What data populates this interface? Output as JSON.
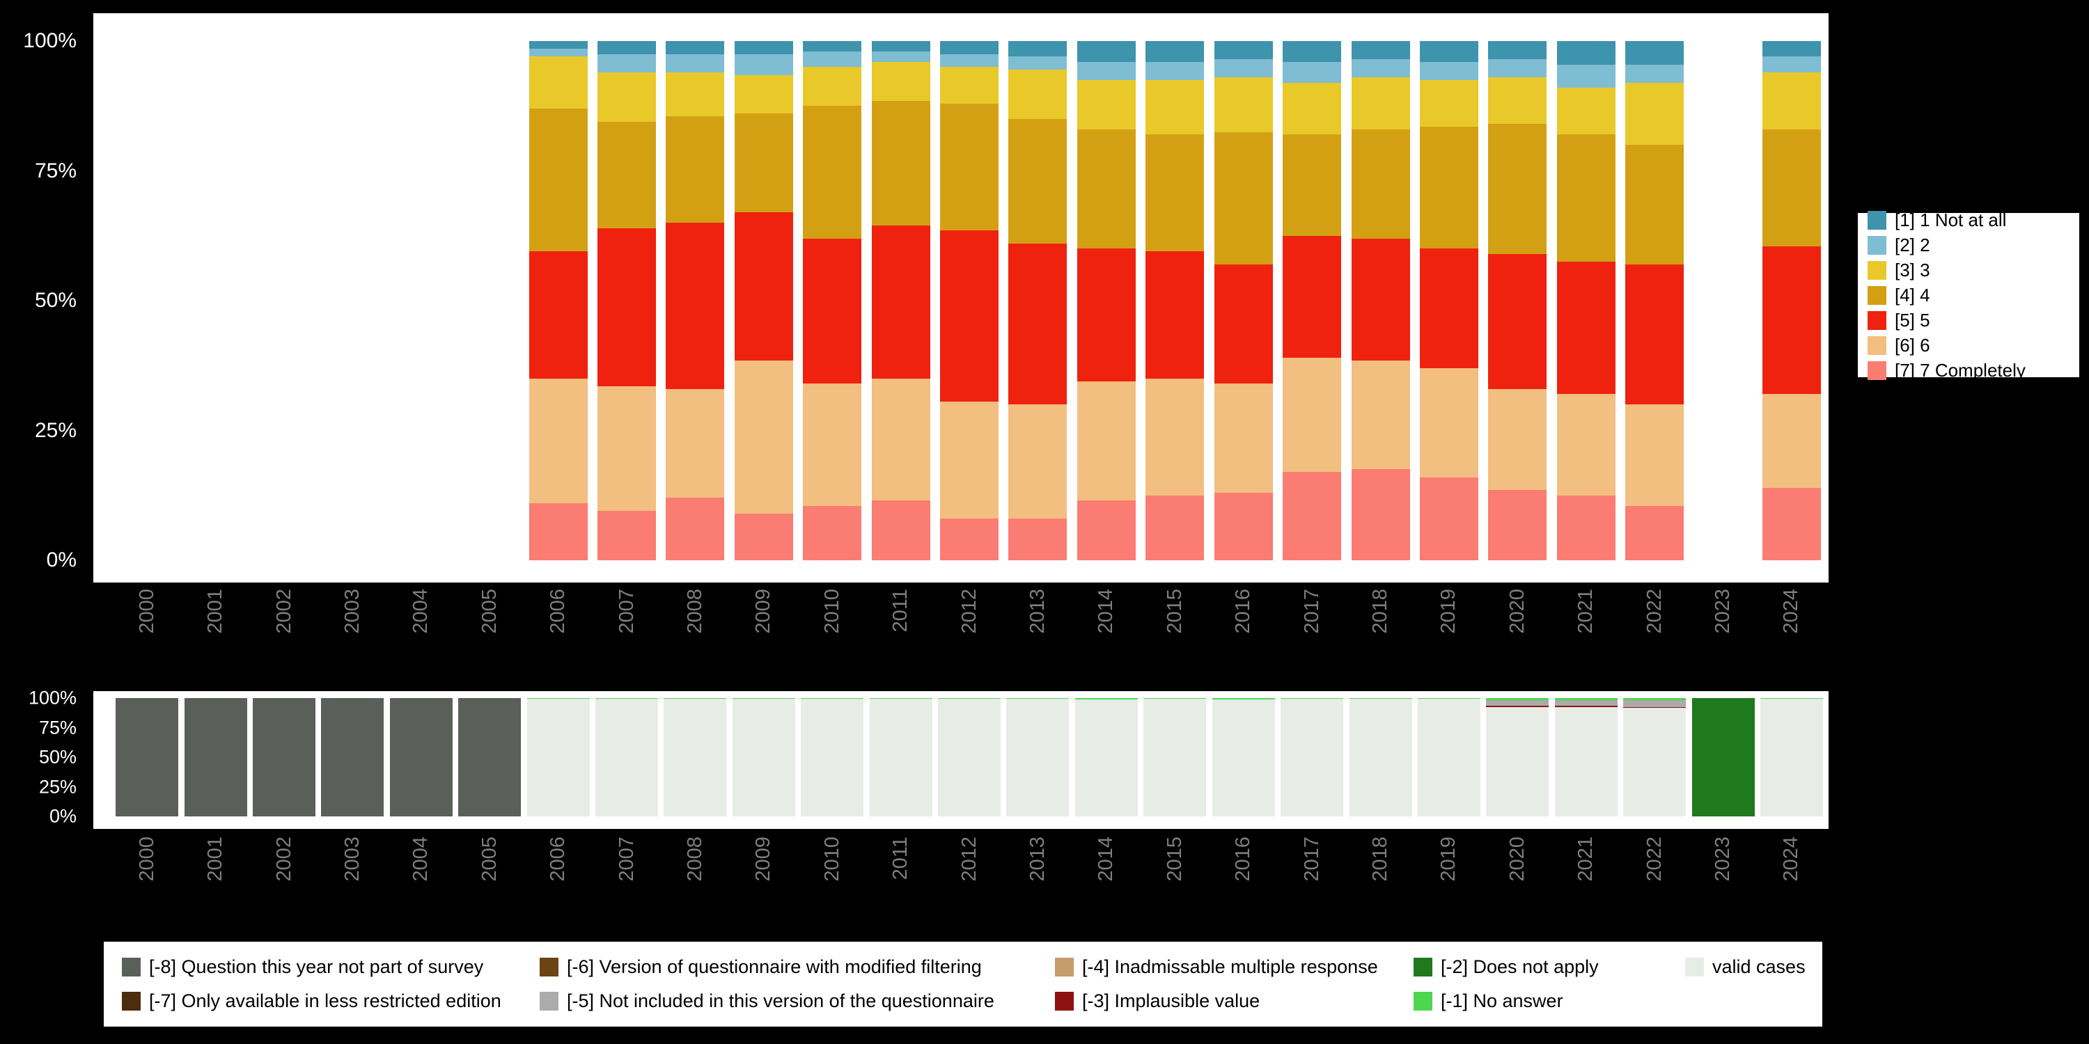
{
  "page": {
    "background_color": "#000000",
    "panel_color": "#ffffff",
    "axis_tick_color": "#ffffff",
    "year_label_color": "#7e7e7e"
  },
  "chart_data": [
    {
      "id": "answer-distribution",
      "type": "bar",
      "stacked": true,
      "orientation": "vertical",
      "unit": "percent",
      "ylim": [
        0,
        100
      ],
      "grid": false,
      "legend_position": "right",
      "y_ticks": [
        "100%",
        "75%",
        "50%",
        "25%",
        "0%"
      ],
      "categories": [
        "2000",
        "2001",
        "2002",
        "2003",
        "2004",
        "2005",
        "2006",
        "2007",
        "2008",
        "2009",
        "2010",
        "2011",
        "2012",
        "2013",
        "2014",
        "2015",
        "2016",
        "2017",
        "2018",
        "2019",
        "2020",
        "2021",
        "2022",
        "2023",
        "2024"
      ],
      "series_keys_bottom_to_top": [
        "7",
        "6",
        "5",
        "4",
        "3",
        "2",
        "1"
      ],
      "legend": [
        {
          "key": "1",
          "label": "[1] 1 Not at all",
          "color": "#3e93ad"
        },
        {
          "key": "2",
          "label": "[2] 2",
          "color": "#7fbdd3"
        },
        {
          "key": "3",
          "label": "[3] 3",
          "color": "#e8c929"
        },
        {
          "key": "4",
          "label": "[4] 4",
          "color": "#d4a013"
        },
        {
          "key": "5",
          "label": "[5] 5",
          "color": "#ee220f"
        },
        {
          "key": "6",
          "label": "[6] 6",
          "color": "#f2bf80"
        },
        {
          "key": "7",
          "label": "[7] 7 Completely",
          "color": "#fb7c72"
        }
      ],
      "bars": [
        {
          "year": "2000",
          "values": null
        },
        {
          "year": "2001",
          "values": null
        },
        {
          "year": "2002",
          "values": null
        },
        {
          "year": "2003",
          "values": null
        },
        {
          "year": "2004",
          "values": null
        },
        {
          "year": "2005",
          "values": null
        },
        {
          "year": "2006",
          "values": [
            11,
            24,
            24.5,
            27.5,
            10,
            1.5,
            1.5
          ]
        },
        {
          "year": "2007",
          "values": [
            9.5,
            24,
            30.5,
            20.5,
            9.5,
            3.5,
            2.5
          ]
        },
        {
          "year": "2008",
          "values": [
            12,
            21,
            32,
            20.5,
            8.5,
            3.5,
            2.5
          ]
        },
        {
          "year": "2009",
          "values": [
            9,
            29.5,
            28.5,
            19,
            7.5,
            4,
            2.5
          ]
        },
        {
          "year": "2010",
          "values": [
            10.5,
            23.5,
            28,
            25.5,
            7.5,
            3,
            2
          ]
        },
        {
          "year": "2011",
          "values": [
            11.5,
            23.5,
            29.5,
            24,
            7.5,
            2,
            2
          ]
        },
        {
          "year": "2012",
          "values": [
            8,
            22.5,
            33,
            24.5,
            7,
            2.5,
            2.5
          ]
        },
        {
          "year": "2013",
          "values": [
            8,
            22,
            31,
            24,
            9.5,
            2.5,
            3
          ]
        },
        {
          "year": "2014",
          "values": [
            11.5,
            23,
            25.5,
            23,
            9.5,
            3.5,
            4
          ]
        },
        {
          "year": "2015",
          "values": [
            12.5,
            22.5,
            24.5,
            22.5,
            10.5,
            3.5,
            4
          ]
        },
        {
          "year": "2016",
          "values": [
            13,
            21,
            23,
            25.5,
            10.5,
            3.5,
            3.5
          ]
        },
        {
          "year": "2017",
          "values": [
            17,
            22,
            23.5,
            19.5,
            10,
            4,
            4
          ]
        },
        {
          "year": "2018",
          "values": [
            17.5,
            21,
            23.5,
            21,
            10,
            3.5,
            3.5
          ]
        },
        {
          "year": "2019",
          "values": [
            16,
            21,
            23,
            23.5,
            9,
            3.5,
            4
          ]
        },
        {
          "year": "2020",
          "values": [
            13.5,
            19.5,
            26,
            25,
            9,
            3.5,
            3.5
          ]
        },
        {
          "year": "2021",
          "values": [
            12.5,
            19.5,
            25.5,
            24.5,
            9,
            4.5,
            4.5
          ]
        },
        {
          "year": "2022",
          "values": [
            10.5,
            19.5,
            27,
            23,
            12,
            3.5,
            4.5
          ]
        },
        {
          "year": "2023",
          "values": null
        },
        {
          "year": "2024",
          "values": [
            14,
            18,
            28.5,
            22.5,
            11,
            3,
            3
          ]
        }
      ]
    },
    {
      "id": "missing-values",
      "type": "bar",
      "stacked": true,
      "orientation": "vertical",
      "unit": "percent",
      "ylim": [
        0,
        100
      ],
      "grid": false,
      "legend_position": "bottom",
      "y_ticks": [
        "100%",
        "75%",
        "50%",
        "25%",
        "0%"
      ],
      "categories": [
        "2000",
        "2001",
        "2002",
        "2003",
        "2004",
        "2005",
        "2006",
        "2007",
        "2008",
        "2009",
        "2010",
        "2011",
        "2012",
        "2013",
        "2014",
        "2015",
        "2016",
        "2017",
        "2018",
        "2019",
        "2020",
        "2021",
        "2022",
        "2023",
        "2024"
      ],
      "legend": [
        {
          "key": "-8",
          "label": "[-8] Question this year not part of survey",
          "color": "#5a5f5a"
        },
        {
          "key": "-7",
          "label": "[-7] Only available in less restricted edition",
          "color": "#4e2c0e"
        },
        {
          "key": "-6",
          "label": "[-6] Version of questionnaire with modified filtering",
          "color": "#6b4413"
        },
        {
          "key": "-5",
          "label": "[-5] Not included in this version of the questionnaire",
          "color": "#ababab"
        },
        {
          "key": "-4",
          "label": "[-4] Inadmissable multiple response",
          "color": "#c69c6d"
        },
        {
          "key": "-3",
          "label": "[-3] Implausible value",
          "color": "#8f1010"
        },
        {
          "key": "-2",
          "label": "[-2] Does not apply",
          "color": "#1f791d"
        },
        {
          "key": "-1",
          "label": "[-1] No answer",
          "color": "#4fd64f"
        },
        {
          "key": "valid",
          "label": "valid cases",
          "color": "#e8ece6"
        }
      ],
      "bars": [
        {
          "year": "2000",
          "segments": [
            {
              "key": "-8",
              "value": 100
            }
          ]
        },
        {
          "year": "2001",
          "segments": [
            {
              "key": "-8",
              "value": 100
            }
          ]
        },
        {
          "year": "2002",
          "segments": [
            {
              "key": "-8",
              "value": 100
            }
          ]
        },
        {
          "year": "2003",
          "segments": [
            {
              "key": "-8",
              "value": 100
            }
          ]
        },
        {
          "year": "2004",
          "segments": [
            {
              "key": "-8",
              "value": 100
            }
          ]
        },
        {
          "year": "2005",
          "segments": [
            {
              "key": "-8",
              "value": 100
            }
          ]
        },
        {
          "year": "2006",
          "segments": [
            {
              "key": "valid",
              "value": 99.4
            },
            {
              "key": "-1",
              "value": 0.6
            }
          ]
        },
        {
          "year": "2007",
          "segments": [
            {
              "key": "valid",
              "value": 99.5
            },
            {
              "key": "-1",
              "value": 0.5
            }
          ]
        },
        {
          "year": "2008",
          "segments": [
            {
              "key": "valid",
              "value": 99.4
            },
            {
              "key": "-1",
              "value": 0.6
            }
          ]
        },
        {
          "year": "2009",
          "segments": [
            {
              "key": "valid",
              "value": 99.3
            },
            {
              "key": "-1",
              "value": 0.7
            }
          ]
        },
        {
          "year": "2010",
          "segments": [
            {
              "key": "valid",
              "value": 99.4
            },
            {
              "key": "-1",
              "value": 0.6
            }
          ]
        },
        {
          "year": "2011",
          "segments": [
            {
              "key": "valid",
              "value": 99.4
            },
            {
              "key": "-1",
              "value": 0.6
            }
          ]
        },
        {
          "year": "2012",
          "segments": [
            {
              "key": "valid",
              "value": 99.5
            },
            {
              "key": "-1",
              "value": 0.5
            }
          ]
        },
        {
          "year": "2013",
          "segments": [
            {
              "key": "valid",
              "value": 99.5
            },
            {
              "key": "-1",
              "value": 0.5
            }
          ]
        },
        {
          "year": "2014",
          "segments": [
            {
              "key": "valid",
              "value": 98.7
            },
            {
              "key": "-1",
              "value": 1.3
            }
          ]
        },
        {
          "year": "2015",
          "segments": [
            {
              "key": "valid",
              "value": 99.2
            },
            {
              "key": "-1",
              "value": 0.8
            }
          ]
        },
        {
          "year": "2016",
          "segments": [
            {
              "key": "valid",
              "value": 98.9
            },
            {
              "key": "-1",
              "value": 1.1
            }
          ]
        },
        {
          "year": "2017",
          "segments": [
            {
              "key": "valid",
              "value": 99.3
            },
            {
              "key": "-1",
              "value": 0.7
            }
          ]
        },
        {
          "year": "2018",
          "segments": [
            {
              "key": "valid",
              "value": 99.3
            },
            {
              "key": "-1",
              "value": 0.7
            }
          ]
        },
        {
          "year": "2019",
          "segments": [
            {
              "key": "valid",
              "value": 99.2
            },
            {
              "key": "-1",
              "value": 0.8
            }
          ]
        },
        {
          "year": "2020",
          "segments": [
            {
              "key": "valid",
              "value": 92.5
            },
            {
              "key": "-3",
              "value": 1
            },
            {
              "key": "-5",
              "value": 5
            },
            {
              "key": "-1",
              "value": 1.5
            }
          ]
        },
        {
          "year": "2021",
          "segments": [
            {
              "key": "valid",
              "value": 92.5
            },
            {
              "key": "-3",
              "value": 1
            },
            {
              "key": "-5",
              "value": 5
            },
            {
              "key": "-1",
              "value": 1.5
            }
          ]
        },
        {
          "year": "2022",
          "segments": [
            {
              "key": "valid",
              "value": 91.8
            },
            {
              "key": "-3",
              "value": 0.7
            },
            {
              "key": "-5",
              "value": 6
            },
            {
              "key": "-1",
              "value": 1.5
            }
          ]
        },
        {
          "year": "2023",
          "segments": [
            {
              "key": "-2",
              "value": 100
            }
          ]
        },
        {
          "year": "2024",
          "segments": [
            {
              "key": "valid",
              "value": 99.2
            },
            {
              "key": "-1",
              "value": 0.8
            }
          ]
        }
      ]
    }
  ]
}
